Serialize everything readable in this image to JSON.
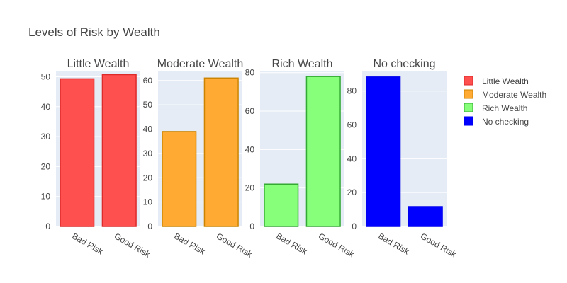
{
  "chart_data": {
    "type": "bar",
    "title": "Levels of Risk by Wealth",
    "categories": [
      "Bad Risk",
      "Good Risk"
    ],
    "legend_position": "right",
    "grid": true,
    "subplots": [
      {
        "name": "Little Wealth",
        "values": [
          49.3,
          50.7
        ],
        "ylim": [
          0,
          52
        ],
        "yticks": [
          0,
          10,
          20,
          30,
          40,
          50
        ],
        "color": "#ff5050",
        "border": "#dd2a2a"
      },
      {
        "name": "Moderate Wealth",
        "values": [
          39.0,
          61.0
        ],
        "ylim": [
          0,
          64
        ],
        "yticks": [
          0,
          10,
          20,
          30,
          40,
          50,
          60
        ],
        "color": "#ffaa33",
        "border": "#cc8400"
      },
      {
        "name": "Rich Wealth",
        "values": [
          22.0,
          78.0
        ],
        "ylim": [
          0,
          81
        ],
        "yticks": [
          0,
          20,
          40,
          60,
          80
        ],
        "color": "#88ff7a",
        "border": "#33aa33"
      },
      {
        "name": "No checking",
        "values": [
          88.3,
          11.7
        ],
        "ylim": [
          0,
          92
        ],
        "yticks": [
          0,
          20,
          40,
          60,
          80
        ],
        "color": "#0000ff",
        "border": "#0000ee"
      }
    ]
  }
}
